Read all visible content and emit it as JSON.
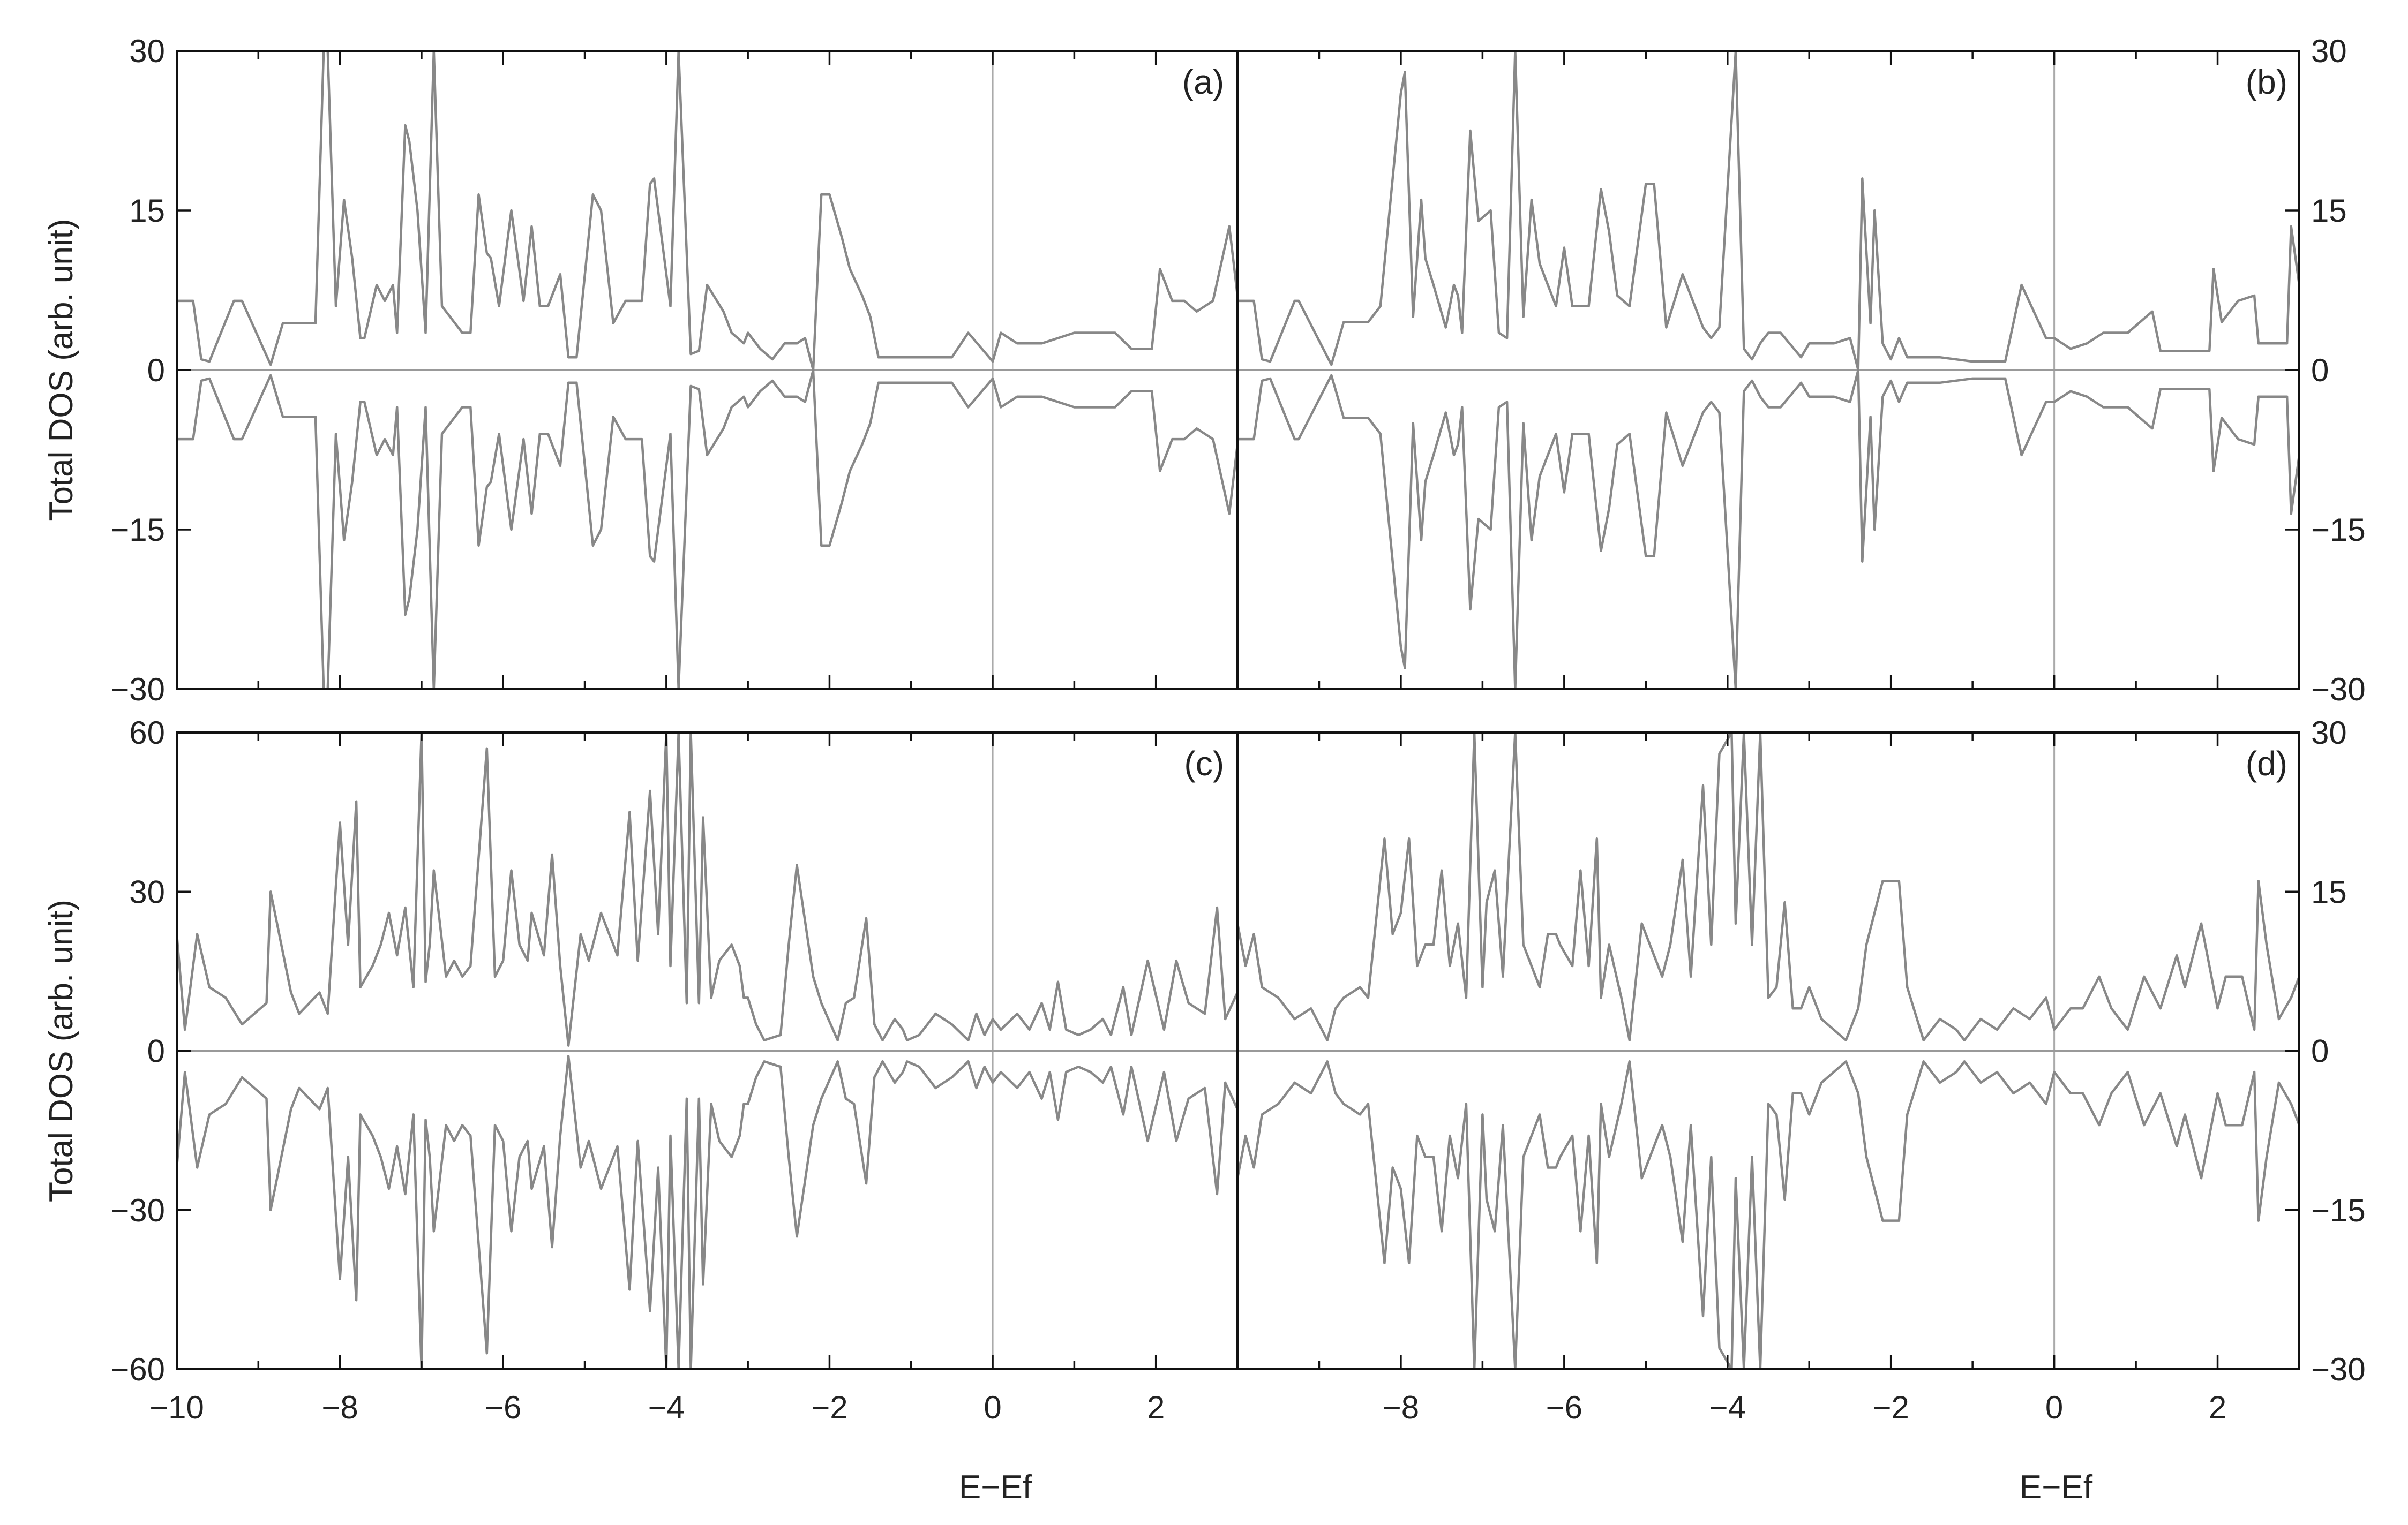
{
  "chart_data": [
    {
      "type": "line",
      "panel_label": "(a)",
      "xlim": [
        -10,
        3
      ],
      "ylim": [
        -30,
        30
      ],
      "yticks": [
        30,
        15,
        0,
        -15,
        -30
      ],
      "ytick_labels": [
        "30",
        "15",
        "0",
        "−15",
        "−30"
      ],
      "ylabel": "Total DOS (arb. unit)",
      "xlabel": "",
      "series": [
        {
          "color": "#888888",
          "x": [
            -10.0,
            -9.8,
            -9.7,
            -9.6,
            -9.3,
            -9.25,
            -9.2,
            -8.85,
            -8.7,
            -8.6,
            -8.3,
            -8.2,
            -8.15,
            -8.05,
            -7.95,
            -7.85,
            -7.75,
            -7.7,
            -7.55,
            -7.45,
            -7.35,
            -7.3,
            -7.2,
            -7.15,
            -7.05,
            -6.95,
            -6.85,
            -6.75,
            -6.6,
            -6.5,
            -6.4,
            -6.3,
            -6.2,
            -6.15,
            -6.05,
            -5.9,
            -5.75,
            -5.65,
            -5.55,
            -5.45,
            -5.3,
            -5.2,
            -5.1,
            -4.9,
            -4.8,
            -4.65,
            -4.5,
            -4.3,
            -4.2,
            -4.15,
            -3.95,
            -3.9,
            -3.85,
            -3.7,
            -3.6,
            -3.5,
            -3.3,
            -3.2,
            -3.05,
            -3.0,
            -2.85,
            -2.7,
            -2.55,
            -2.4,
            -2.3,
            -2.2,
            -2.1,
            -2.0,
            -1.85,
            -1.75,
            -1.6,
            -1.5,
            -1.4,
            -1.0,
            -0.5,
            -0.3,
            0.0,
            0.1,
            0.3,
            0.6,
            1.0,
            1.1,
            1.5,
            1.7,
            1.95,
            2.05,
            2.2,
            2.35,
            2.5,
            2.7,
            2.9,
            3.0
          ],
          "values": [
            6.5,
            6.5,
            1.0,
            0.8,
            6.5,
            6.5,
            6.5,
            0.5,
            4.4,
            4.4,
            4.4,
            30.0,
            30.0,
            6.0,
            16.0,
            10.5,
            3.0,
            3.0,
            8.0,
            6.5,
            8.0,
            3.5,
            23.0,
            21.5,
            15.0,
            3.5,
            30.0,
            6.0,
            4.5,
            3.5,
            3.5,
            16.5,
            11.0,
            10.5,
            6.0,
            15.0,
            6.5,
            13.5,
            6.0,
            6.0,
            9.0,
            1.2,
            1.2,
            16.5,
            15.0,
            4.4,
            6.5,
            6.5,
            17.5,
            18.0,
            6.0,
            18.0,
            30.0,
            1.5,
            1.8,
            8.0,
            5.5,
            3.5,
            2.5,
            3.5,
            2.0,
            1.0,
            2.5,
            2.5,
            3.0,
            0.0,
            16.5,
            16.5,
            12.5,
            9.5,
            7.0,
            5.0,
            1.2,
            1.2,
            1.2,
            3.5,
            0.8,
            3.5,
            2.5,
            2.5,
            3.5,
            3.5,
            3.5,
            2.0,
            2.0,
            9.5,
            6.5,
            6.5,
            5.5,
            6.5,
            13.5,
            7.0
          ]
        }
      ]
    },
    {
      "type": "line",
      "panel_label": "(b)",
      "xlim": [
        -10,
        3
      ],
      "ylim": [
        -30,
        30
      ],
      "yticks": [
        30,
        15,
        0,
        -15,
        -30
      ],
      "ytick_labels": [
        "30",
        "15",
        "0",
        "−15",
        "−30"
      ],
      "ylabel": "",
      "xlabel": "",
      "series": [
        {
          "color": "#888888",
          "x": [
            -10.0,
            -9.8,
            -9.7,
            -9.6,
            -9.3,
            -9.25,
            -8.85,
            -8.7,
            -8.4,
            -8.25,
            -8.0,
            -7.95,
            -7.85,
            -7.75,
            -7.7,
            -7.6,
            -7.45,
            -7.35,
            -7.3,
            -7.25,
            -7.15,
            -7.05,
            -6.9,
            -6.8,
            -6.7,
            -6.6,
            -6.5,
            -6.4,
            -6.3,
            -6.1,
            -6.0,
            -5.9,
            -5.7,
            -5.55,
            -5.45,
            -5.35,
            -5.2,
            -5.0,
            -4.9,
            -4.75,
            -4.55,
            -4.4,
            -4.3,
            -4.2,
            -4.1,
            -3.9,
            -3.8,
            -3.7,
            -3.6,
            -3.5,
            -3.35,
            -3.1,
            -3.0,
            -2.85,
            -2.7,
            -2.5,
            -2.4,
            -2.35,
            -2.25,
            -2.2,
            -2.1,
            -2.0,
            -1.9,
            -1.8,
            -1.6,
            -1.4,
            -1.0,
            -0.6,
            -0.4,
            -0.1,
            0.0,
            0.2,
            0.4,
            0.6,
            0.9,
            1.2,
            1.3,
            1.9,
            1.95,
            2.05,
            2.25,
            2.45,
            2.5,
            2.85,
            2.9,
            3.0
          ],
          "values": [
            6.5,
            6.5,
            1.0,
            0.8,
            6.5,
            6.5,
            0.5,
            4.5,
            4.5,
            6.0,
            26.0,
            28.0,
            5.0,
            16.0,
            10.5,
            8.0,
            4.0,
            8.0,
            7.0,
            3.5,
            22.5,
            14.0,
            15.0,
            3.5,
            3.0,
            30.0,
            5.0,
            16.0,
            10.0,
            6.0,
            11.5,
            6.0,
            6.0,
            17.0,
            13.0,
            7.0,
            6.0,
            17.5,
            17.5,
            4.0,
            9.0,
            6.0,
            4.0,
            3.0,
            4.0,
            30.0,
            2.0,
            1.0,
            2.5,
            3.5,
            3.5,
            1.2,
            2.5,
            2.5,
            2.5,
            3.0,
            0.0,
            18.0,
            4.4,
            15.0,
            2.5,
            1.0,
            3.0,
            1.2,
            1.2,
            1.2,
            0.8,
            0.8,
            8.0,
            3.0,
            3.0,
            2.0,
            2.5,
            3.5,
            3.5,
            5.5,
            1.8,
            1.8,
            9.5,
            4.5,
            6.5,
            7.0,
            2.5,
            2.5,
            13.5,
            8.0
          ]
        }
      ]
    },
    {
      "type": "line",
      "panel_label": "(c)",
      "xlim": [
        -10,
        3
      ],
      "ylim": [
        -60,
        60
      ],
      "yticks": [
        60,
        30,
        0,
        -30,
        -60
      ],
      "ytick_labels": [
        "60",
        "30",
        "0",
        "−30",
        "−60"
      ],
      "xticks": [
        -10,
        -8,
        -6,
        -4,
        -2,
        0,
        2
      ],
      "xtick_labels": [
        "−10",
        "−8",
        "−6",
        "−4",
        "−2",
        "0",
        "2"
      ],
      "ylabel": "Total DOS (arb. unit)",
      "xlabel": "E−Ef",
      "series": [
        {
          "color": "#888888",
          "x": [
            -10.0,
            -9.9,
            -9.75,
            -9.6,
            -9.4,
            -9.2,
            -8.9,
            -8.85,
            -8.6,
            -8.5,
            -8.25,
            -8.15,
            -8.0,
            -7.9,
            -7.8,
            -7.75,
            -7.6,
            -7.5,
            -7.4,
            -7.3,
            -7.2,
            -7.1,
            -7.0,
            -6.95,
            -6.9,
            -6.85,
            -6.7,
            -6.6,
            -6.5,
            -6.4,
            -6.2,
            -6.1,
            -6.0,
            -5.9,
            -5.8,
            -5.7,
            -5.65,
            -5.5,
            -5.4,
            -5.3,
            -5.2,
            -5.15,
            -5.05,
            -4.95,
            -4.8,
            -4.7,
            -4.6,
            -4.45,
            -4.35,
            -4.2,
            -4.1,
            -4.0,
            -3.95,
            -3.85,
            -3.75,
            -3.7,
            -3.6,
            -3.55,
            -3.45,
            -3.35,
            -3.2,
            -3.1,
            -3.05,
            -3.0,
            -2.9,
            -2.8,
            -2.6,
            -2.5,
            -2.4,
            -2.2,
            -2.1,
            -1.9,
            -1.8,
            -1.7,
            -1.55,
            -1.45,
            -1.35,
            -1.2,
            -1.1,
            -1.05,
            -0.9,
            -0.7,
            -0.5,
            -0.3,
            -0.2,
            -0.1,
            0.0,
            0.1,
            0.3,
            0.45,
            0.6,
            0.7,
            0.8,
            0.9,
            1.05,
            1.2,
            1.35,
            1.45,
            1.6,
            1.7,
            1.9,
            2.1,
            2.25,
            2.4,
            2.5,
            2.6,
            2.75,
            2.85,
            3.0
          ],
          "values": [
            22,
            4,
            22,
            12,
            10,
            5,
            9,
            30,
            11,
            7,
            11,
            7,
            43,
            20,
            47,
            12,
            16,
            20,
            26,
            18,
            27,
            12,
            60,
            13,
            20,
            34,
            14,
            17,
            14,
            16,
            57,
            14,
            17,
            34,
            20,
            17,
            26,
            18,
            37,
            16,
            1,
            8,
            22,
            17,
            26,
            22,
            18,
            45,
            17,
            49,
            22,
            60,
            16,
            60,
            9,
            60,
            9,
            44,
            10,
            17,
            20,
            16,
            10,
            10,
            5,
            2,
            3,
            20,
            35,
            14,
            9,
            2,
            9,
            10,
            25,
            5,
            2,
            6,
            4,
            2,
            3,
            7,
            5,
            2,
            7,
            3,
            6,
            4,
            7,
            4,
            9,
            4,
            13,
            4,
            3,
            4,
            6,
            3,
            12,
            3,
            17,
            4,
            17,
            9,
            8,
            7,
            27,
            6,
            11
          ]
        }
      ]
    },
    {
      "type": "line",
      "panel_label": "(d)",
      "xlim": [
        -10,
        3
      ],
      "ylim": [
        -30,
        30
      ],
      "yticks": [
        30,
        15,
        0,
        -15,
        -30
      ],
      "ytick_labels": [
        "30",
        "15",
        "0",
        "−15",
        "−30"
      ],
      "xticks": [
        -8,
        -6,
        -4,
        -2,
        0,
        2
      ],
      "xtick_labels": [
        "−8",
        "−6",
        "−4",
        "−2",
        "0",
        "2"
      ],
      "ylabel": "",
      "xlabel": "E−Ef",
      "series": [
        {
          "color": "#888888",
          "x": [
            -10.0,
            -9.9,
            -9.8,
            -9.7,
            -9.5,
            -9.3,
            -9.1,
            -8.9,
            -8.8,
            -8.7,
            -8.5,
            -8.4,
            -8.2,
            -8.1,
            -8.0,
            -7.9,
            -7.8,
            -7.7,
            -7.6,
            -7.5,
            -7.4,
            -7.3,
            -7.2,
            -7.1,
            -7.0,
            -6.95,
            -6.85,
            -6.75,
            -6.6,
            -6.5,
            -6.4,
            -6.3,
            -6.2,
            -6.1,
            -6.05,
            -5.9,
            -5.8,
            -5.7,
            -5.6,
            -5.55,
            -5.45,
            -5.3,
            -5.2,
            -5.05,
            -4.95,
            -4.8,
            -4.7,
            -4.55,
            -4.45,
            -4.3,
            -4.2,
            -4.1,
            -3.95,
            -3.9,
            -3.8,
            -3.7,
            -3.6,
            -3.5,
            -3.4,
            -3.3,
            -3.2,
            -3.1,
            -3.0,
            -2.85,
            -2.7,
            -2.55,
            -2.4,
            -2.3,
            -2.1,
            -1.9,
            -1.8,
            -1.6,
            -1.5,
            -1.4,
            -1.2,
            -1.1,
            -0.9,
            -0.7,
            -0.5,
            -0.3,
            -0.1,
            0.0,
            0.2,
            0.35,
            0.55,
            0.7,
            0.9,
            1.1,
            1.3,
            1.5,
            1.6,
            1.8,
            2.0,
            2.1,
            2.3,
            2.45,
            2.5,
            2.6,
            2.75,
            2.9,
            3.0
          ],
          "values": [
            12,
            8,
            11,
            6,
            5,
            3,
            4,
            1,
            4,
            5,
            6,
            5,
            20,
            11,
            13,
            20,
            8,
            10,
            10,
            17,
            8,
            12,
            5,
            30,
            6,
            14,
            17,
            7,
            30,
            10,
            8,
            6,
            11,
            11,
            10,
            8,
            17,
            8,
            20,
            5,
            10,
            5,
            1,
            12,
            10,
            7,
            10,
            18,
            7,
            25,
            10,
            28,
            30,
            12,
            30,
            10,
            30,
            5,
            6,
            14,
            4,
            4,
            6,
            3,
            2,
            1,
            4,
            10,
            16,
            16,
            6,
            1,
            2,
            3,
            2,
            1,
            3,
            2,
            4,
            3,
            5,
            2,
            4,
            4,
            7,
            4,
            2,
            7,
            4,
            9,
            6,
            12,
            4,
            7,
            7,
            2,
            16,
            10,
            3,
            5,
            7
          ]
        }
      ]
    }
  ]
}
